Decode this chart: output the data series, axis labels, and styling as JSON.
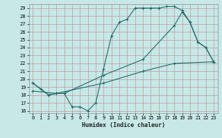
{
  "xlabel": "Humidex (Indice chaleur)",
  "bg_color": "#c8e8e8",
  "grid_color": "#b89898",
  "line_color": "#1a6666",
  "xlim": [
    -0.5,
    23.5
  ],
  "ylim": [
    15.7,
    29.5
  ],
  "xticks": [
    0,
    1,
    2,
    3,
    4,
    5,
    6,
    7,
    8,
    9,
    10,
    11,
    12,
    13,
    14,
    15,
    16,
    17,
    18,
    19,
    20,
    21,
    22,
    23
  ],
  "yticks": [
    16,
    17,
    18,
    19,
    20,
    21,
    22,
    23,
    24,
    25,
    26,
    27,
    28,
    29
  ],
  "line1_x": [
    0,
    1,
    2,
    3,
    4,
    5,
    6,
    7,
    8,
    9,
    10,
    11,
    12,
    13,
    14,
    15,
    16,
    17,
    18,
    19,
    20,
    21,
    22,
    23
  ],
  "line1_y": [
    19.5,
    18.8,
    18.0,
    18.2,
    18.2,
    16.5,
    16.5,
    16.0,
    17.0,
    21.3,
    25.5,
    27.2,
    27.6,
    29.0,
    29.0,
    29.0,
    29.0,
    29.2,
    29.2,
    28.7,
    27.2,
    24.7,
    24.0,
    22.2
  ],
  "line2_x": [
    0,
    2,
    3,
    4,
    9,
    14,
    18,
    19,
    20,
    21,
    22,
    23
  ],
  "line2_y": [
    19.5,
    18.0,
    18.2,
    18.2,
    20.5,
    22.5,
    26.8,
    28.5,
    27.2,
    24.7,
    24.0,
    22.2
  ],
  "line3_x": [
    0,
    3,
    9,
    14,
    18,
    23
  ],
  "line3_y": [
    18.5,
    18.2,
    19.5,
    21.0,
    22.0,
    22.2
  ]
}
